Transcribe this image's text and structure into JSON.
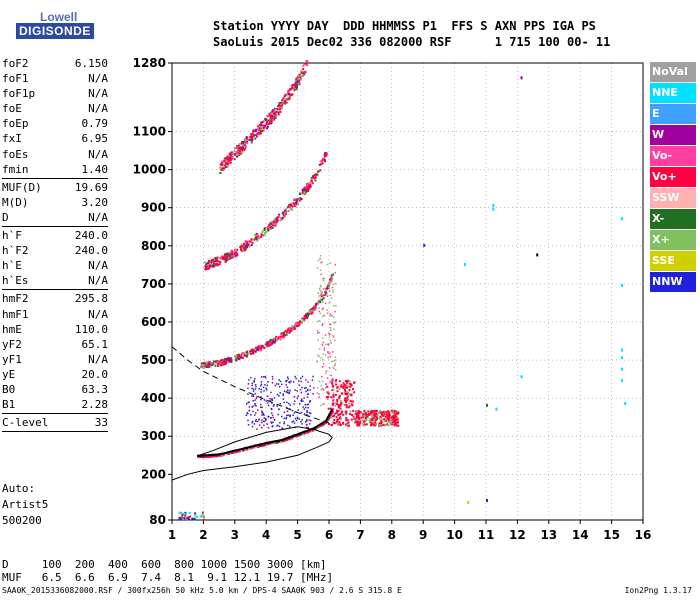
{
  "logo": {
    "line1": "Lowell",
    "line2": "DIGISONDE"
  },
  "header": {
    "line1": "Station YYYY DAY  DDD HHMMSS P1  FFS S AXN PPS IGA PS",
    "line2": "SaoLuis 2015 Dec02 336 082000 RSF      1 715 100 00- 11"
  },
  "params": [
    {
      "name": "foF2",
      "value": "6.150"
    },
    {
      "name": "foF1",
      "value": "N/A"
    },
    {
      "name": "foF1p",
      "value": "N/A"
    },
    {
      "name": "foE",
      "value": "N/A"
    },
    {
      "name": "foEp",
      "value": "0.79"
    },
    {
      "name": "fxI",
      "value": "6.95"
    },
    {
      "name": "foEs",
      "value": "N/A"
    },
    {
      "name": "fmin",
      "value": "1.40"
    },
    {
      "sep": true
    },
    {
      "name": "MUF(D)",
      "value": "19.69"
    },
    {
      "name": "M(D)",
      "value": "3.20"
    },
    {
      "name": "D",
      "value": "N/A"
    },
    {
      "sep": true
    },
    {
      "name": "h`F",
      "value": "240.0"
    },
    {
      "name": "h`F2",
      "value": "240.0"
    },
    {
      "name": "h`E",
      "value": "N/A"
    },
    {
      "name": "h`Es",
      "value": "N/A"
    },
    {
      "sep": true
    },
    {
      "name": "hmF2",
      "value": "295.8"
    },
    {
      "name": "hmF1",
      "value": "N/A"
    },
    {
      "name": "hmE",
      "value": "110.0"
    },
    {
      "name": "yF2",
      "value": "65.1"
    },
    {
      "name": "yF1",
      "value": "N/A"
    },
    {
      "name": "yE",
      "value": "20.0"
    },
    {
      "name": "B0",
      "value": "63.3"
    },
    {
      "name": "B1",
      "value": "2.28"
    },
    {
      "sep": true
    },
    {
      "name": "C-level",
      "value": "33"
    },
    {
      "sep": true
    }
  ],
  "auto": {
    "line1": "Auto:",
    "line2": "Artist5",
    "line3": "500200"
  },
  "muf_table": {
    "line1": "D     100  200  400  600  800 1000 1500 3000 [km]",
    "line2": "MUF   6.5  6.6  6.9  7.4  8.1  9.1 12.1 19.7 [MHz]"
  },
  "footer": "SAA0K_2015336082000.RSF / 300fx256h 50 kHz 5.0 km / DPS-4 SAA0K 903 / 2.6 S 315.8 E",
  "version": "Ion2Png 1.3.17",
  "legend": [
    {
      "label": "NoVal",
      "color": "#a0a0a0"
    },
    {
      "label": "NNE",
      "color": "#00e0ff"
    },
    {
      "label": "E",
      "color": "#40a0ff"
    },
    {
      "label": "W",
      "color": "#a000a0"
    },
    {
      "label": "Vo-",
      "color": "#ff40a0"
    },
    {
      "label": "Vo+",
      "color": "#ff0040"
    },
    {
      "label": "SSW",
      "color": "#ffb0b0"
    },
    {
      "label": "X-",
      "color": "#207020"
    },
    {
      "label": "X+",
      "color": "#80c060"
    },
    {
      "label": "SSE",
      "color": "#d0d000"
    },
    {
      "label": "NNW",
      "color": "#2020e0"
    }
  ],
  "chart_data": {
    "type": "scatter",
    "xlim": [
      1,
      16
    ],
    "ylim": [
      80,
      1280
    ],
    "xticks": [
      1,
      2,
      3,
      4,
      5,
      6,
      7,
      8,
      9,
      10,
      11,
      12,
      13,
      14,
      15,
      16
    ],
    "yticks": [
      80,
      200,
      300,
      400,
      500,
      600,
      700,
      800,
      900,
      1000,
      1100,
      1280
    ],
    "grid": true,
    "series": [
      {
        "name": "O-trace",
        "points": [
          [
            1.8,
            248
          ],
          [
            2.5,
            252
          ],
          [
            3.0,
            262
          ],
          [
            3.5,
            272
          ],
          [
            4.0,
            282
          ],
          [
            4.5,
            290
          ],
          [
            5.0,
            305
          ],
          [
            5.5,
            320
          ],
          [
            5.9,
            340
          ],
          [
            6.1,
            370
          ]
        ]
      },
      {
        "name": "2F-trace",
        "points": [
          [
            1.9,
            485
          ],
          [
            2.5,
            492
          ],
          [
            3.0,
            505
          ],
          [
            3.5,
            520
          ],
          [
            4.0,
            540
          ],
          [
            4.5,
            565
          ],
          [
            5.0,
            595
          ],
          [
            5.5,
            635
          ],
          [
            5.9,
            680
          ],
          [
            6.1,
            730
          ]
        ]
      },
      {
        "name": "3F-trace",
        "points": [
          [
            2.0,
            745
          ],
          [
            2.5,
            760
          ],
          [
            3.0,
            780
          ],
          [
            3.5,
            810
          ],
          [
            4.0,
            840
          ],
          [
            4.5,
            880
          ],
          [
            5.0,
            920
          ],
          [
            5.5,
            975
          ],
          [
            5.9,
            1040
          ]
        ]
      },
      {
        "name": "4F-trace",
        "points": [
          [
            2.5,
            1000
          ],
          [
            3.0,
            1040
          ],
          [
            3.5,
            1080
          ],
          [
            4.0,
            1120
          ],
          [
            4.5,
            1170
          ],
          [
            5.0,
            1230
          ],
          [
            5.3,
            1280
          ]
        ]
      }
    ],
    "profile": [
      [
        1.0,
        185
      ],
      [
        1.5,
        200
      ],
      [
        2.0,
        210
      ],
      [
        3.0,
        220
      ],
      [
        4.0,
        232
      ],
      [
        5.0,
        250
      ],
      [
        5.6,
        270
      ],
      [
        6.0,
        285
      ],
      [
        6.1,
        296
      ],
      [
        6.0,
        305
      ],
      [
        5.5,
        318
      ],
      [
        5.0,
        325
      ],
      [
        4.0,
        310
      ],
      [
        3.0,
        285
      ],
      [
        2.3,
        262
      ],
      [
        1.8,
        248
      ]
    ],
    "dashed": [
      [
        1.0,
        535
      ],
      [
        1.5,
        500
      ],
      [
        2.0,
        470
      ],
      [
        3.0,
        430
      ],
      [
        4.0,
        395
      ],
      [
        5.0,
        362
      ],
      [
        6.0,
        335
      ]
    ]
  }
}
